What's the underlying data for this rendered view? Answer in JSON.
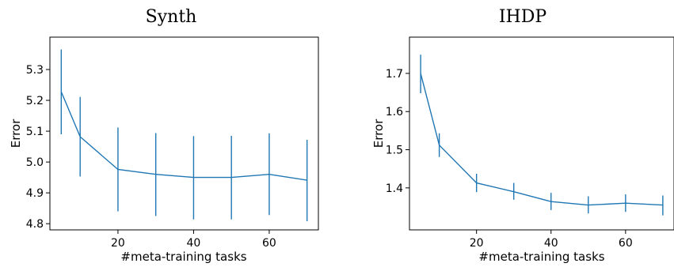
{
  "chart_data": [
    {
      "type": "line",
      "title": "Synth",
      "xlabel": "#meta-training tasks",
      "ylabel": "Error",
      "xlim": [
        2,
        73
      ],
      "ylim": [
        4.78,
        5.405
      ],
      "xticks": [
        20,
        40,
        60
      ],
      "yticks": [
        4.8,
        4.9,
        5.0,
        5.1,
        5.2,
        5.3
      ],
      "ytick_labels": [
        "4.8",
        "4.9",
        "5.0",
        "5.1",
        "5.2",
        "5.3"
      ],
      "x": [
        5,
        10,
        20,
        30,
        40,
        50,
        60,
        70
      ],
      "y": [
        5.228,
        5.082,
        4.976,
        4.96,
        4.95,
        4.95,
        4.96,
        4.941
      ],
      "yerr_low": [
        5.09,
        4.953,
        4.84,
        4.825,
        4.814,
        4.814,
        4.828,
        4.808
      ],
      "yerr_high": [
        5.365,
        5.211,
        5.112,
        5.094,
        5.084,
        5.085,
        5.093,
        5.072
      ],
      "color": "#1f77b4"
    },
    {
      "type": "line",
      "title": "IHDP",
      "xlabel": "#meta-training tasks",
      "ylabel": "Error",
      "xlim": [
        2,
        73
      ],
      "ylim": [
        1.29,
        1.795
      ],
      "xticks": [
        20,
        40,
        60
      ],
      "yticks": [
        1.4,
        1.5,
        1.6,
        1.7
      ],
      "ytick_labels": [
        "1.4",
        "1.5",
        "1.6",
        "1.7"
      ],
      "x": [
        5,
        10,
        20,
        30,
        40,
        50,
        60,
        70
      ],
      "y": [
        1.7,
        1.512,
        1.413,
        1.39,
        1.364,
        1.355,
        1.36,
        1.355
      ],
      "yerr_low": [
        1.648,
        1.481,
        1.389,
        1.369,
        1.342,
        1.333,
        1.337,
        1.328
      ],
      "yerr_high": [
        1.749,
        1.543,
        1.437,
        1.413,
        1.387,
        1.378,
        1.383,
        1.38
      ],
      "color": "#1f77b4"
    }
  ]
}
